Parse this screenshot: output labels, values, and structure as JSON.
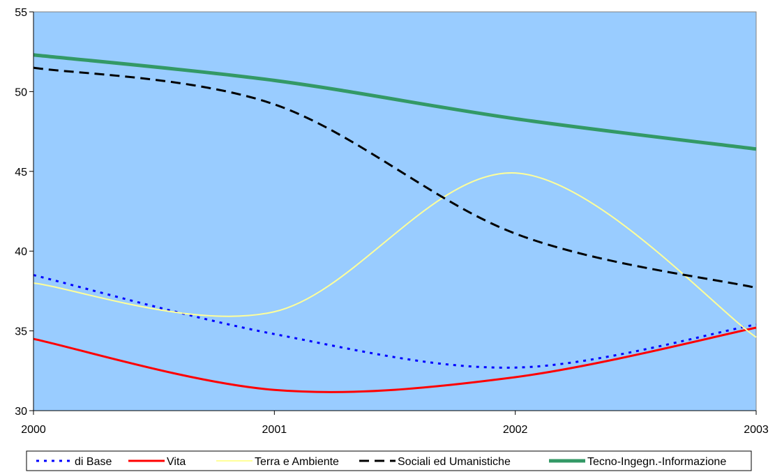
{
  "chart_data": {
    "type": "line",
    "title": "",
    "xlabel": "",
    "ylabel": "",
    "categories": [
      "2000",
      "2001",
      "2002",
      "2003"
    ],
    "x": [
      2000,
      2001,
      2002,
      2003
    ],
    "ylim": [
      30,
      55
    ],
    "yticks": [
      30,
      35,
      40,
      45,
      50,
      55
    ],
    "grid": false,
    "plot_background": "#99CCFF",
    "legend_position": "bottom",
    "smooth": true,
    "series": [
      {
        "name": "di Base",
        "values": [
          38.5,
          34.8,
          32.7,
          35.4
        ],
        "color": "#0000FF",
        "dash": "dotted",
        "width": 3
      },
      {
        "name": "Vita",
        "values": [
          34.5,
          31.3,
          32.1,
          35.2
        ],
        "color": "#FF0000",
        "dash": "solid",
        "width": 3
      },
      {
        "name": "Terra e Ambiente",
        "values": [
          38.0,
          36.2,
          44.9,
          34.6
        ],
        "color": "#FFFF99",
        "dash": "solid",
        "width": 2
      },
      {
        "name": "Sociali ed Umanistiche",
        "values": [
          51.5,
          49.2,
          41.1,
          37.7
        ],
        "color": "#000000",
        "dash": "dashed",
        "width": 3
      },
      {
        "name": "Tecno-Ingegn.-Informazione",
        "values": [
          52.3,
          50.7,
          48.3,
          46.4
        ],
        "color": "#339966",
        "dash": "solid",
        "width": 5
      }
    ]
  }
}
